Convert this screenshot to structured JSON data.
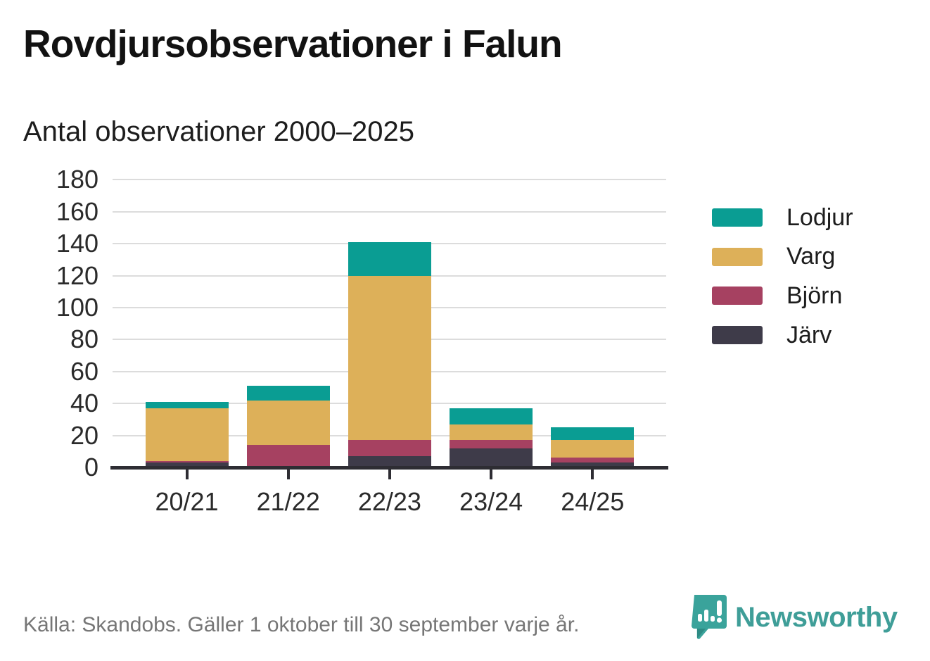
{
  "title": "Rovdjursobservationer i Falun",
  "subtitle": "Antal observationer 2000–2025",
  "footer": {
    "source": "Källa: Skandobs. Gäller 1 oktober till 30 september varje år."
  },
  "branding": {
    "name": "Newsworthy",
    "logo_color": "#3f9e98"
  },
  "colors": {
    "lodjur": "#0a9d93",
    "varg": "#ddb059",
    "bjorn": "#a64161",
    "jarv": "#3e3b49",
    "axis": "#2e2d33",
    "grid": "#dcdcdc",
    "text": "#2b2b2b",
    "muted_text": "#767676"
  },
  "chart_data": {
    "type": "bar",
    "stacked": true,
    "title": "Rovdjursobservationer i Falun",
    "subtitle": "Antal observationer 2000–2025",
    "categories": [
      "20/21",
      "21/22",
      "22/23",
      "23/24",
      "24/25"
    ],
    "series": [
      {
        "name": "Järv",
        "color": "#3e3b49",
        "values": [
          3,
          0,
          7,
          12,
          3
        ]
      },
      {
        "name": "Björn",
        "color": "#a64161",
        "values": [
          1,
          14,
          10,
          5,
          3
        ]
      },
      {
        "name": "Varg",
        "color": "#ddb059",
        "values": [
          33,
          28,
          103,
          10,
          11
        ]
      },
      {
        "name": "Lodjur",
        "color": "#0a9d93",
        "values": [
          4,
          9,
          21,
          10,
          8
        ]
      }
    ],
    "totals": [
      41,
      51,
      141,
      37,
      25
    ],
    "ylim": [
      0,
      180
    ],
    "yticks": [
      0,
      20,
      40,
      60,
      80,
      100,
      120,
      140,
      160,
      180
    ],
    "grid": true,
    "legend_position": "right",
    "legend_order": [
      "Lodjur",
      "Varg",
      "Björn",
      "Järv"
    ]
  }
}
